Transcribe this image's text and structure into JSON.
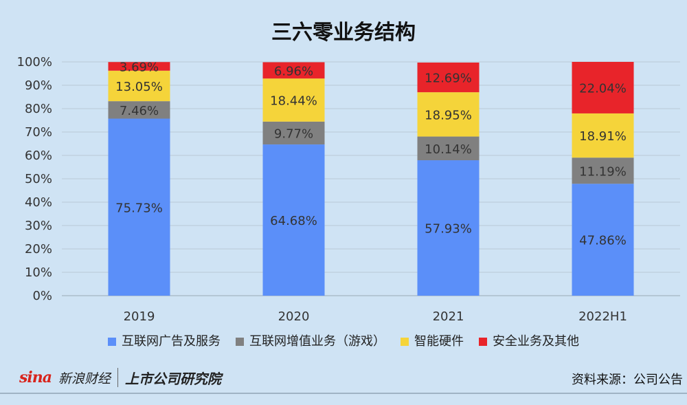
{
  "chart_data": {
    "type": "bar",
    "stacked": true,
    "title": "三六零业务结构",
    "categories": [
      "2019",
      "2020",
      "2021",
      "2022H1"
    ],
    "yticks": [
      "0%",
      "10%",
      "20%",
      "30%",
      "40%",
      "50%",
      "60%",
      "70%",
      "80%",
      "90%",
      "100%"
    ],
    "ylim": [
      0,
      100
    ],
    "grid": true,
    "legend_position": "bottom",
    "series": [
      {
        "name": "互联网广告及服务",
        "color": "#5b8ff9",
        "values": [
          75.73,
          64.68,
          57.93,
          47.86
        ],
        "labels": [
          "75.73%",
          "64.68%",
          "57.93%",
          "47.86%"
        ]
      },
      {
        "name": "互联网增值业务（游戏）",
        "color": "#808080",
        "values": [
          7.46,
          9.77,
          10.14,
          11.19
        ],
        "labels": [
          "7.46%",
          "9.77%",
          "10.14%",
          "11.19%"
        ]
      },
      {
        "name": "智能硬件",
        "color": "#f5d43a",
        "values": [
          13.05,
          18.44,
          18.95,
          18.91
        ],
        "labels": [
          "13.05%",
          "18.44%",
          "18.95%",
          "18.91%"
        ]
      },
      {
        "name": "安全业务及其他",
        "color": "#e8242a",
        "values": [
          3.69,
          6.96,
          12.69,
          22.04
        ],
        "labels": [
          "3.69%",
          "6.96%",
          "12.69%",
          "22.04%"
        ]
      }
    ]
  },
  "footer": {
    "sina_logo": "sina",
    "brand_name": "新浪财经",
    "research_name": "上市公司研究院",
    "source": "资料来源：公司公告"
  }
}
